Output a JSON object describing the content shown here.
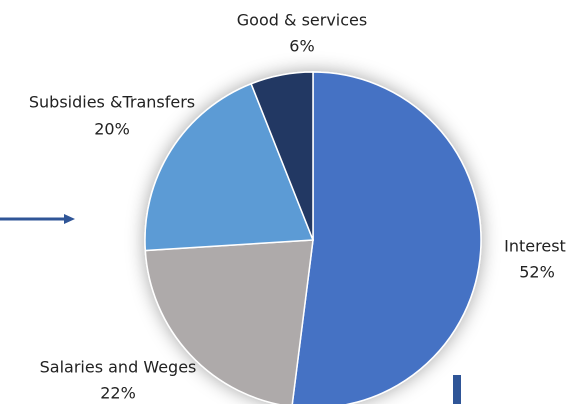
{
  "chart_data": {
    "type": "pie",
    "categories": [
      "Interest",
      "Salaries and Weges",
      "Subsidies &Transfers",
      "Good & services"
    ],
    "values": [
      52,
      22,
      20,
      6
    ],
    "value_labels": [
      "52%",
      "22%",
      "20%",
      "6%"
    ],
    "colors": [
      "#4472c4",
      "#aeaaaa",
      "#5b9bd5",
      "#203864"
    ]
  }
}
